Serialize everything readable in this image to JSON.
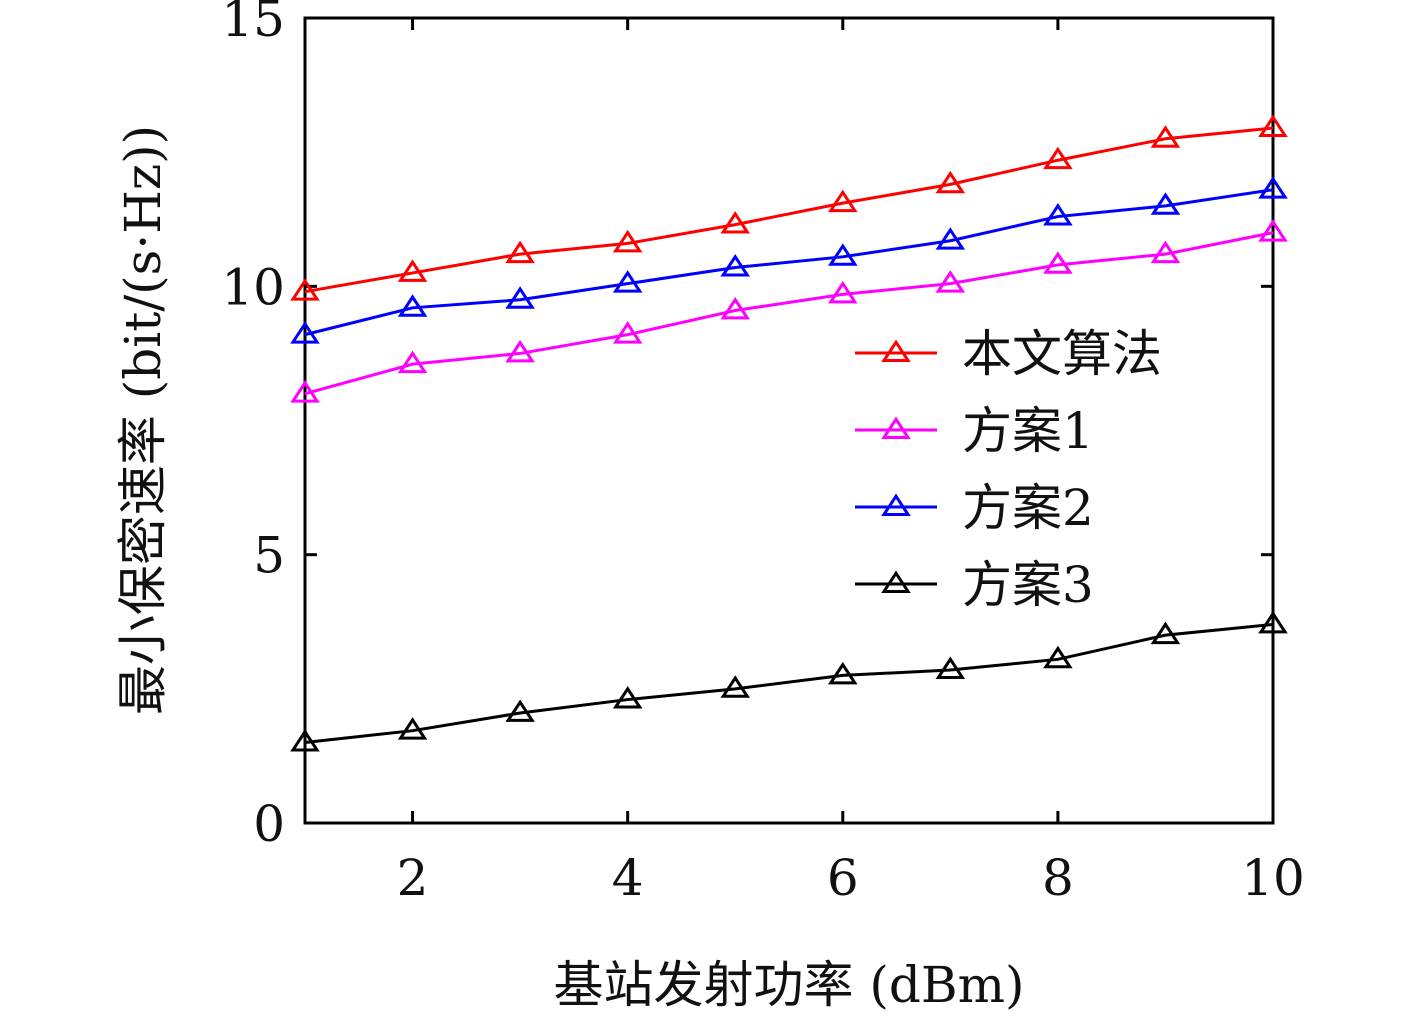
{
  "chart_data": {
    "type": "line",
    "title": "",
    "xlabel": "基站发射功率 (dBm)",
    "ylabel": "最小保密速率 (bit/(s·Hz))",
    "x": [
      1,
      2,
      3,
      4,
      5,
      6,
      7,
      8,
      9,
      10
    ],
    "xlim": [
      1,
      10
    ],
    "ylim": [
      0,
      15
    ],
    "xticks": [
      2,
      4,
      6,
      8,
      10
    ],
    "yticks": [
      0,
      5,
      10,
      15
    ],
    "grid": false,
    "legend_position": "center-right",
    "marker": "open-triangle",
    "series": [
      {
        "name": "本文算法",
        "color": "#ff0000",
        "values": [
          9.9,
          10.25,
          10.6,
          10.8,
          11.15,
          11.55,
          11.9,
          12.35,
          12.75,
          12.95
        ]
      },
      {
        "name": "方案1",
        "color": "#ff00ff",
        "values": [
          8.0,
          8.55,
          8.75,
          9.1,
          9.55,
          9.85,
          10.05,
          10.4,
          10.6,
          11.0
        ]
      },
      {
        "name": "方案2",
        "color": "#0000ff",
        "values": [
          9.1,
          9.6,
          9.75,
          10.05,
          10.35,
          10.55,
          10.85,
          11.3,
          11.5,
          11.8
        ]
      },
      {
        "name": "方案3",
        "color": "#000000",
        "values": [
          1.5,
          1.72,
          2.05,
          2.3,
          2.5,
          2.75,
          2.85,
          3.05,
          3.5,
          3.7
        ]
      }
    ]
  }
}
